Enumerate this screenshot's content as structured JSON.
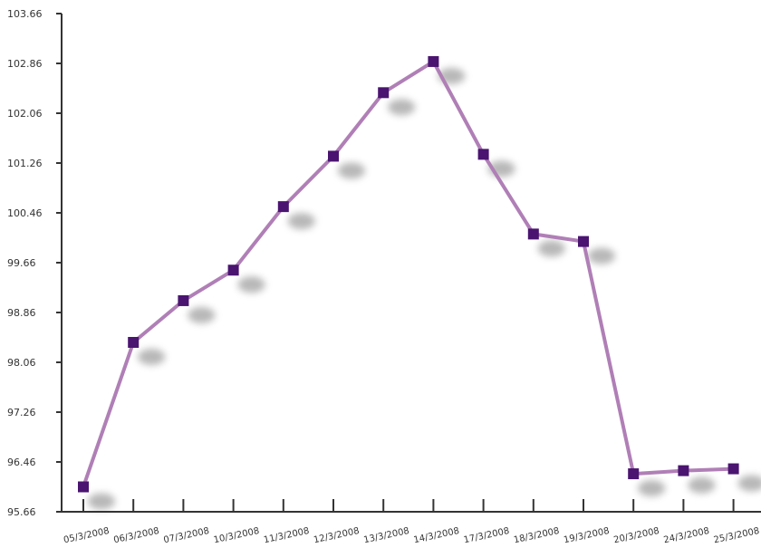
{
  "chart_data": {
    "type": "line",
    "categories": [
      "05/3/2008",
      "06/3/2008",
      "07/3/2008",
      "10/3/2008",
      "11/3/2008",
      "12/3/2008",
      "13/3/2008",
      "14/3/2008",
      "17/3/2008",
      "18/3/2008",
      "19/3/2008",
      "20/3/2008",
      "24/3/2008",
      "25/3/2008"
    ],
    "values": [
      96.06,
      98.38,
      99.05,
      99.54,
      100.56,
      101.37,
      102.39,
      102.89,
      101.4,
      100.12,
      100.0,
      96.27,
      96.32,
      96.35
    ],
    "y_ticks": [
      "95.66",
      "96.46",
      "97.26",
      "98.06",
      "98.86",
      "99.66",
      "100.46",
      "101.26",
      "102.06",
      "102.86",
      "103.66"
    ],
    "ylim": [
      95.66,
      103.66
    ],
    "grid": false,
    "colors": {
      "line": "#b07fb6",
      "marker": "#4a1470",
      "axis": "#333333"
    }
  }
}
